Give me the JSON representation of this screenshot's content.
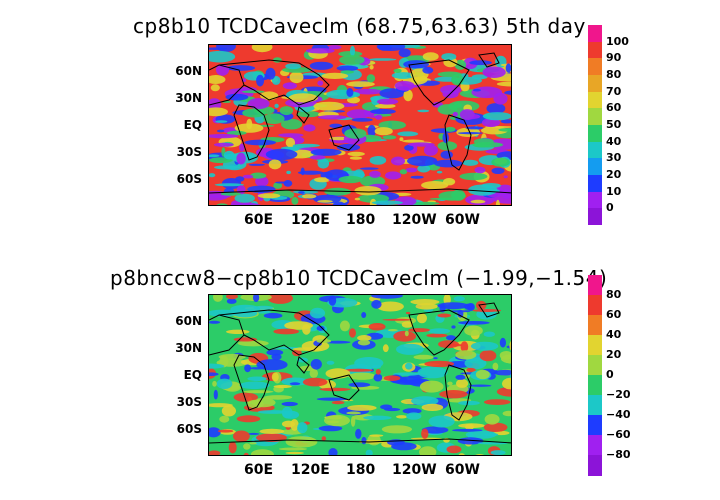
{
  "panels": [
    {
      "title": "cp8b10 TCDCaveclm (68.75,63.63) 5th day",
      "lat_labels": [
        "60N",
        "30N",
        "EQ",
        "30S",
        "60S"
      ],
      "lon_labels": [
        "60E",
        "120E",
        "180",
        "120W",
        "60W"
      ],
      "colorbar": {
        "labels": [
          "100",
          "90",
          "80",
          "70",
          "60",
          "50",
          "40",
          "30",
          "20",
          "10",
          "0"
        ],
        "colors": [
          "#f0168c",
          "#ee3a2e",
          "#f07c25",
          "#e8a626",
          "#e2d430",
          "#a0d840",
          "#2ccc68",
          "#1cc8c8",
          "#149cf0",
          "#1e3cff",
          "#a020f0",
          "#8c14d8"
        ]
      },
      "colors": {
        "background": "#ee3a2e",
        "patch_a": "#2ccc68",
        "patch_b": "#a020f0",
        "patch_c": "#1cc8c8",
        "patch_d": "#1e3cff",
        "patch_e": "#e2d430"
      }
    },
    {
      "title": "p8bnccw8−cp8b10 TCDCaveclm (−1.99,−1.54)",
      "lat_labels": [
        "60N",
        "30N",
        "EQ",
        "30S",
        "60S"
      ],
      "lon_labels": [
        "60E",
        "120E",
        "180",
        "120W",
        "60W"
      ],
      "colorbar": {
        "labels": [
          "80",
          "60",
          "40",
          "20",
          "0",
          "−20",
          "−40",
          "−60",
          "−80"
        ],
        "colors": [
          "#f0168c",
          "#ee3a2e",
          "#f07c25",
          "#e2d430",
          "#a0d840",
          "#2ccc68",
          "#1cc8c8",
          "#1e3cff",
          "#a020f0",
          "#8c14d8"
        ]
      },
      "colors": {
        "background": "#2ccc68",
        "patch_a": "#a0d840",
        "patch_b": "#1cc8c8",
        "patch_c": "#e2d430",
        "patch_d": "#1e3cff",
        "patch_e": "#ee3a2e"
      }
    }
  ]
}
